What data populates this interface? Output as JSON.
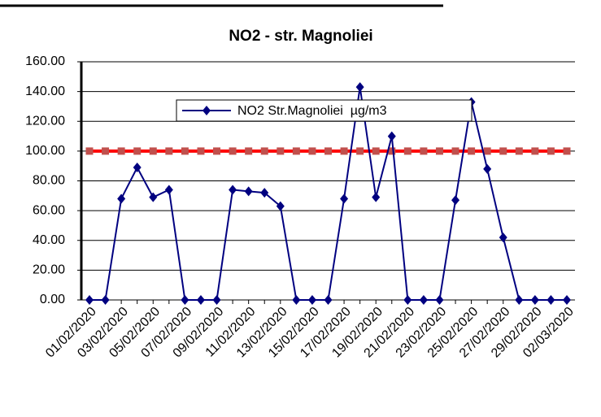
{
  "chart_data": {
    "type": "line",
    "title": "NO2 - str. Magnoliei",
    "categories": [
      "01/02/2020",
      null,
      "03/02/2020",
      null,
      "05/02/2020",
      null,
      "07/02/2020",
      null,
      "09/02/2020",
      null,
      "11/02/2020",
      null,
      "13/02/2020",
      null,
      "15/02/2020",
      null,
      "17/02/2020",
      null,
      "19/02/2020",
      null,
      "21/02/2020",
      null,
      "23/02/2020",
      null,
      "25/02/2020",
      null,
      "27/02/2020",
      null,
      "29/02/2020",
      null,
      "02/03/2020"
    ],
    "series": [
      {
        "name": "NO2 Str.Magnoliei  µg/m3",
        "color": "#000080",
        "values": [
          0,
          0,
          68,
          89,
          69,
          74,
          0,
          0,
          0,
          74,
          73,
          72,
          63,
          0,
          0,
          0,
          68,
          143,
          69,
          110,
          0,
          0,
          0,
          67,
          133,
          88,
          42,
          0,
          0,
          0,
          0
        ]
      },
      {
        "color": "#ff0000",
        "marker_color": "#c0504d",
        "values": [
          100,
          100,
          100,
          100,
          100,
          100,
          100,
          100,
          100,
          100,
          100,
          100,
          100,
          100,
          100,
          100,
          100,
          100,
          100,
          100,
          100,
          100,
          100,
          100,
          100,
          100,
          100,
          100,
          100,
          100,
          100
        ]
      }
    ],
    "ylim": [
      0,
      160
    ],
    "yticks": [
      {
        "value": 0,
        "label": "0.00"
      },
      {
        "value": 20,
        "label": "20.00"
      },
      {
        "value": 40,
        "label": "40.00"
      },
      {
        "value": 60,
        "label": "60.00"
      },
      {
        "value": 80,
        "label": "80.00"
      },
      {
        "value": 100,
        "label": "100.00"
      },
      {
        "value": 120,
        "label": "120.00"
      },
      {
        "value": 140,
        "label": "140.00"
      },
      {
        "value": 160,
        "label": "160.00"
      }
    ],
    "grid": true
  }
}
